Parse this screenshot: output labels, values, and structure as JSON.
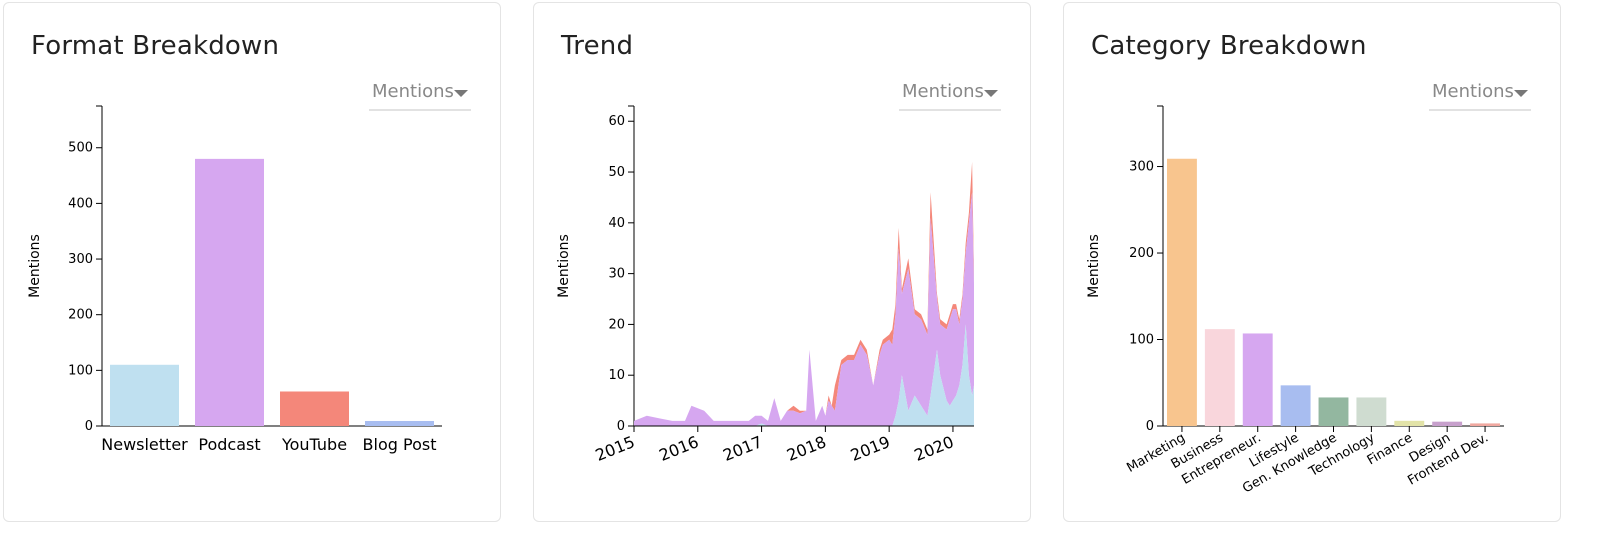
{
  "panels": {
    "format": {
      "title": "Format Breakdown",
      "metric": "Mentions"
    },
    "trend": {
      "title": "Trend",
      "metric": "Mentions"
    },
    "category": {
      "title": "Category Breakdown",
      "metric": "Mentions"
    }
  },
  "chart_data": [
    {
      "type": "bar",
      "title": "Format Breakdown",
      "xlabel": "",
      "ylabel": "Mentions",
      "categories": [
        "Newsletter",
        "Podcast",
        "YouTube",
        "Blog Post"
      ],
      "values": [
        110,
        480,
        62,
        9
      ],
      "colors": [
        "#bfe0f0",
        "#d6a7f0",
        "#f4877a",
        "#a8bdf0"
      ],
      "yticks": [
        0,
        100,
        200,
        300,
        400,
        500
      ],
      "ylim": [
        0,
        575
      ],
      "grid": false
    },
    {
      "type": "area",
      "title": "Trend",
      "xlabel": "",
      "ylabel": "Mentions",
      "xticks": [
        "2015",
        "2016",
        "2017",
        "2018",
        "2019",
        "2020"
      ],
      "yticks": [
        0,
        10,
        20,
        30,
        40,
        50,
        60
      ],
      "ylim": [
        0,
        63
      ],
      "xlim": [
        2015.0,
        2020.33
      ],
      "stacked": true,
      "grid": false,
      "x": [
        2015.0,
        2015.2,
        2015.4,
        2015.6,
        2015.8,
        2015.9,
        2016.0,
        2016.1,
        2016.25,
        2016.4,
        2016.6,
        2016.8,
        2016.9,
        2017.0,
        2017.1,
        2017.2,
        2017.3,
        2017.4,
        2017.5,
        2017.6,
        2017.7,
        2017.75,
        2017.85,
        2017.95,
        2018.0,
        2018.05,
        2018.1,
        2018.15,
        2018.25,
        2018.35,
        2018.45,
        2018.55,
        2018.65,
        2018.75,
        2018.85,
        2018.9,
        2019.0,
        2019.05,
        2019.1,
        2019.15,
        2019.2,
        2019.3,
        2019.4,
        2019.5,
        2019.6,
        2019.65,
        2019.75,
        2019.8,
        2019.9,
        2019.95,
        2020.0,
        2020.05,
        2020.1,
        2020.15,
        2020.2,
        2020.25,
        2020.3,
        2020.33
      ],
      "series": [
        {
          "color": "#bfe0f0",
          "values": [
            0,
            0,
            0,
            0,
            0,
            0,
            0,
            0,
            0,
            0,
            0,
            0,
            0,
            0.5,
            0,
            0,
            0,
            0,
            0,
            0,
            0,
            0,
            0,
            0,
            0,
            0,
            0,
            0,
            0,
            0,
            0,
            0,
            0,
            0,
            0,
            0,
            0,
            0,
            2,
            5,
            10,
            3,
            6,
            4,
            2,
            6,
            15,
            10,
            5,
            4,
            5,
            6,
            8,
            12,
            20,
            10,
            6,
            8
          ]
        },
        {
          "color": "#d6a7f0",
          "values": [
            1,
            2,
            1.5,
            1,
            1,
            4,
            3.5,
            3,
            1,
            1,
            1,
            1,
            2,
            1.5,
            1,
            5.5,
            1,
            3,
            3,
            2.5,
            3,
            15,
            1,
            4,
            2,
            5,
            4,
            3,
            12,
            13,
            13,
            16,
            14,
            8,
            14,
            16,
            17,
            16,
            20,
            30,
            16,
            28,
            16,
            17,
            16,
            35,
            10,
            10,
            14,
            17,
            18,
            17,
            12,
            13,
            14,
            30,
            40,
            20
          ]
        },
        {
          "color": "#f4877a",
          "values": [
            0,
            0,
            0,
            0,
            0,
            0,
            0,
            0,
            0,
            0,
            0,
            0,
            0,
            0,
            0,
            0,
            0,
            0,
            1,
            0.5,
            0,
            0,
            0,
            0,
            0,
            1,
            0,
            5,
            1,
            1,
            1,
            1,
            1,
            0,
            1,
            1,
            1,
            3,
            2,
            4,
            1,
            2,
            1,
            1,
            1,
            5,
            1,
            1,
            1,
            1,
            1,
            1,
            1,
            1,
            2,
            2,
            6,
            2
          ]
        }
      ]
    },
    {
      "type": "bar",
      "title": "Category Breakdown",
      "xlabel": "",
      "ylabel": "Mentions",
      "categories": [
        "Marketing",
        "Business",
        "Entrepreneur.",
        "Lifestyle",
        "Gen. Knowledge",
        "Technology",
        "Finance",
        "Design",
        "Frontend Dev."
      ],
      "values": [
        309,
        112,
        107,
        47,
        33,
        33,
        6,
        5,
        3
      ],
      "colors": [
        "#f8c58e",
        "#f9d6dc",
        "#d6a7f0",
        "#a8bdf0",
        "#93b7a0",
        "#cfdcd0",
        "#e2e3a8",
        "#c7a0cc",
        "#f0a8a0"
      ],
      "yticks": [
        0,
        100,
        200,
        300
      ],
      "ylim": [
        0,
        370
      ],
      "grid": false
    }
  ]
}
